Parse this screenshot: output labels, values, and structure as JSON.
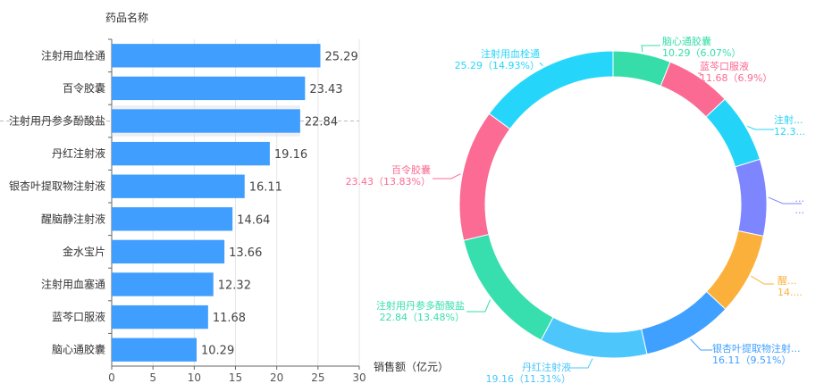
{
  "chart_data": [
    {
      "type": "bar",
      "orientation": "horizontal",
      "ylabel": "药品名称",
      "xlabel": "销售额（亿元）",
      "categories": [
        "注射用血栓通",
        "百令胶囊",
        "注射用丹参多酚酸盐",
        "丹红注射液",
        "银杏叶提取物注射液",
        "醒脑静注射液",
        "金水宝片",
        "注射用血塞通",
        "蓝芩口服液",
        "脑心通胶囊"
      ],
      "values": [
        25.29,
        23.43,
        22.84,
        19.16,
        16.11,
        14.64,
        13.66,
        12.32,
        11.68,
        10.29
      ],
      "value_labels": [
        "25.29",
        "23.43",
        "22.84",
        "19.16",
        "16.11",
        "14.64",
        "13.66",
        "12.32",
        "11.68",
        "10.29"
      ],
      "xlim": [
        0,
        30
      ],
      "xticks": [
        "0",
        "5",
        "10",
        "15",
        "20",
        "25",
        "30"
      ],
      "bar_color": "#409eff",
      "highlighted_category": "注射用丹参多酚酸盐",
      "grid": true
    },
    {
      "type": "pie",
      "style": "donut",
      "slices": [
        {
          "name": "脑心通胶囊",
          "value": 10.29,
          "percent": 6.07,
          "color": "#36dda8",
          "label_lines": [
            "脑心通胶囊",
            "10.29（6.07%）"
          ]
        },
        {
          "name": "蓝芩口服液",
          "value": 11.68,
          "percent": 6.9,
          "color": "#fa6a92",
          "label_lines": [
            "蓝芩口服液",
            "11.68（6.9%）"
          ]
        },
        {
          "name": "注射用血塞通",
          "value": 12.32,
          "percent": 7.27,
          "color": "#24d4f8",
          "label_lines": [
            "注射...",
            "12.3..."
          ]
        },
        {
          "name": "金水宝片",
          "value": 13.66,
          "percent": 8.07,
          "color": "#7e86ff",
          "label_lines": [
            "...",
            "..."
          ]
        },
        {
          "name": "醒脑静注射液",
          "value": 14.64,
          "percent": 8.64,
          "color": "#fcb03c",
          "label_lines": [
            "醒...",
            "14...."
          ]
        },
        {
          "name": "银杏叶提取物注射液",
          "value": 16.11,
          "percent": 9.51,
          "color": "#3fa0ff",
          "label_lines": [
            "银杏叶提取物注射...",
            "16.11（9.51%）"
          ]
        },
        {
          "name": "丹红注射液",
          "value": 19.16,
          "percent": 11.31,
          "color": "#4cc6fb",
          "label_lines": [
            "丹红注射液",
            "19.16（11.31%）"
          ]
        },
        {
          "name": "注射用丹参多酚酸盐",
          "value": 22.84,
          "percent": 13.48,
          "color": "#37dfae",
          "label_lines": [
            "注射用丹参多酚酸盐",
            "22.84（13.48%）"
          ]
        },
        {
          "name": "百令胶囊",
          "value": 23.43,
          "percent": 13.83,
          "color": "#fb6b93",
          "label_lines": [
            "百令胶囊",
            "23.43（13.83%）"
          ]
        },
        {
          "name": "注射用血栓通",
          "value": 25.29,
          "percent": 14.93,
          "color": "#26d6fa",
          "label_lines": [
            "注射用血栓通",
            "25.29（14.93%）"
          ]
        }
      ]
    }
  ]
}
